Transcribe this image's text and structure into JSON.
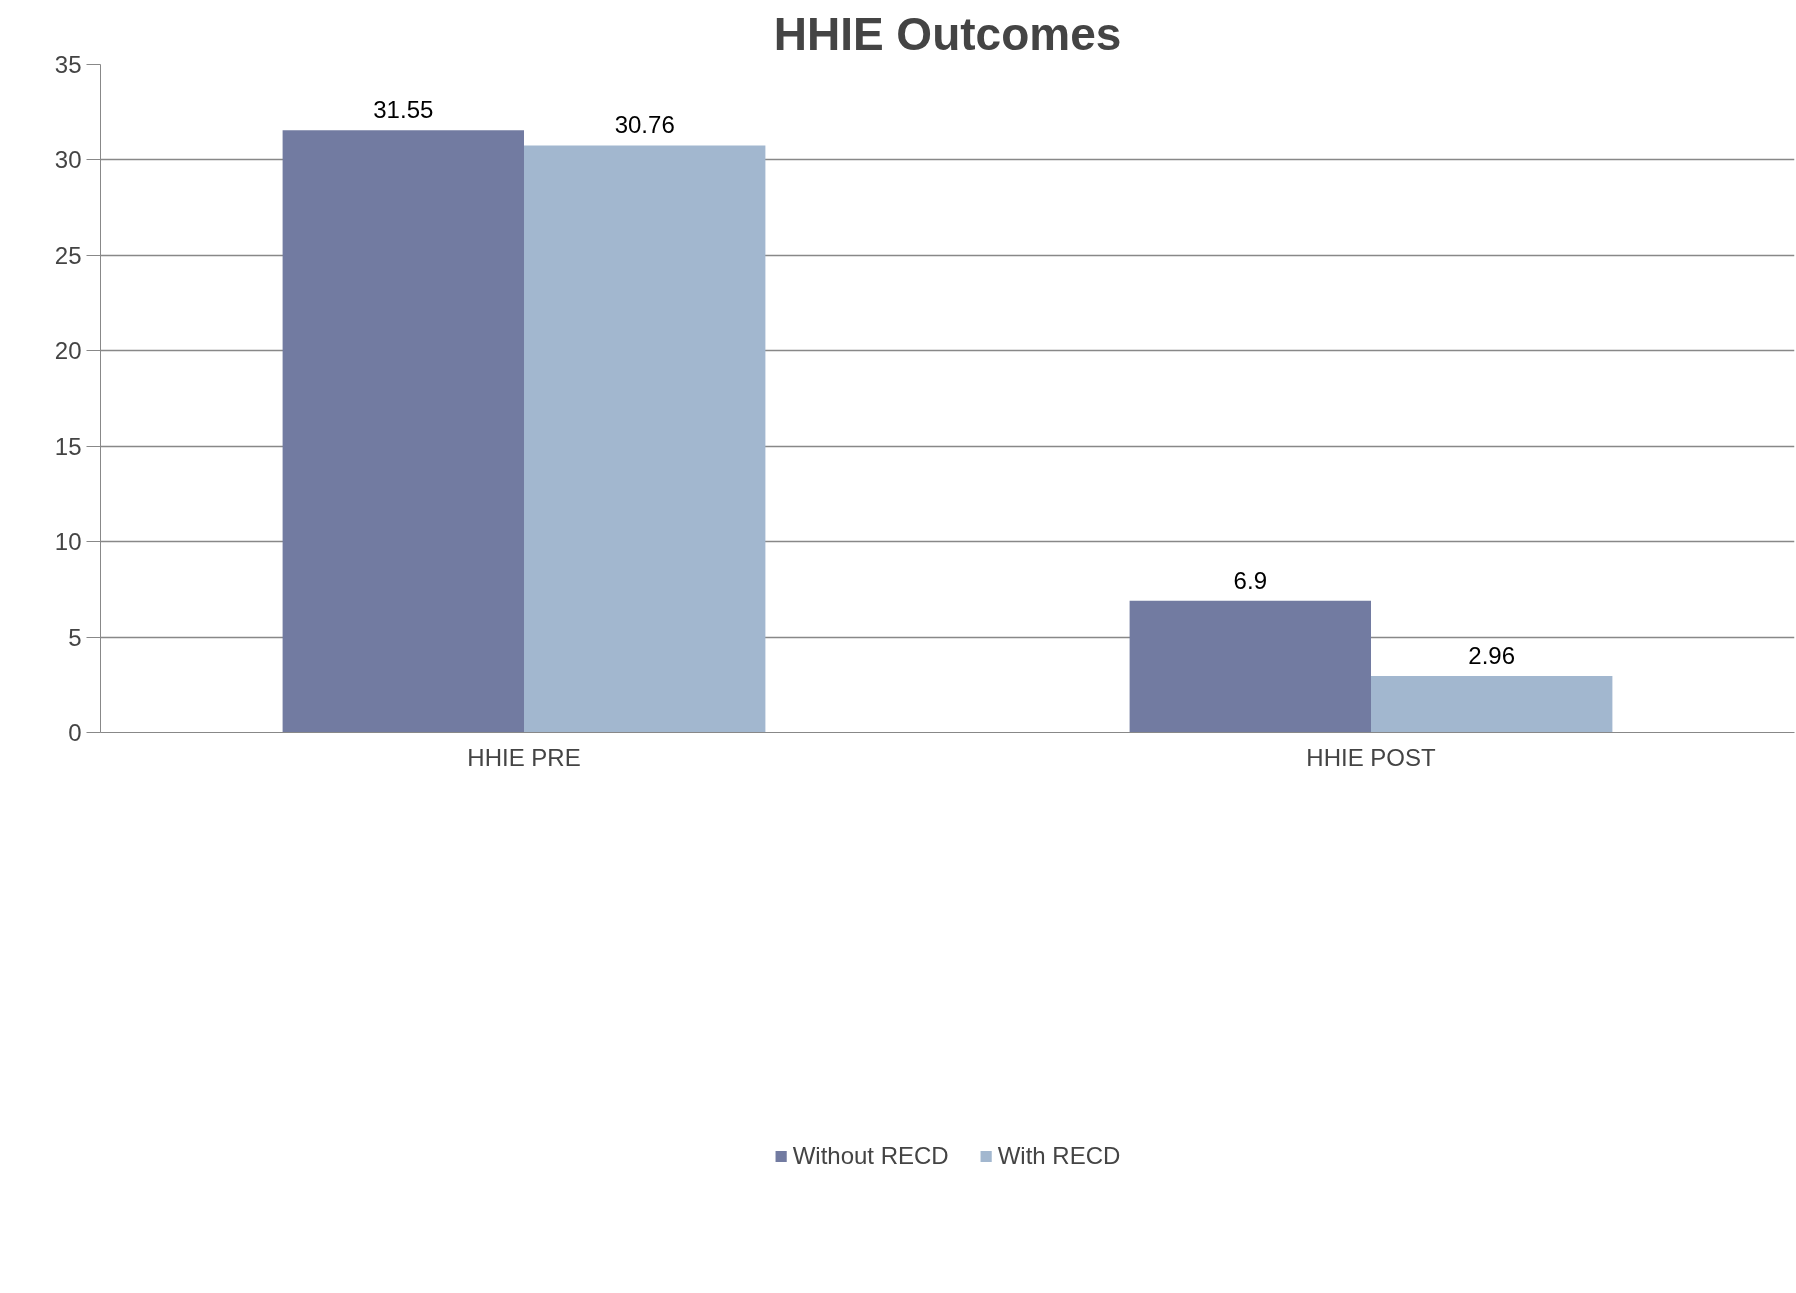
{
  "chart_data": {
    "type": "bar",
    "title": "HHIE Outcomes",
    "categories": [
      "HHIE PRE",
      "HHIE POST"
    ],
    "series": [
      {
        "name": "Without RECD",
        "color": "#727ba1",
        "values": [
          31.55,
          6.9
        ]
      },
      {
        "name": "With RECD",
        "color": "#a2b7cf",
        "values": [
          30.76,
          2.96
        ]
      }
    ],
    "ylim": [
      0,
      35
    ],
    "yticks": [
      0,
      5,
      10,
      15,
      20,
      25,
      30,
      35
    ],
    "grid": "y",
    "legend": "bottom",
    "data_labels": true
  }
}
